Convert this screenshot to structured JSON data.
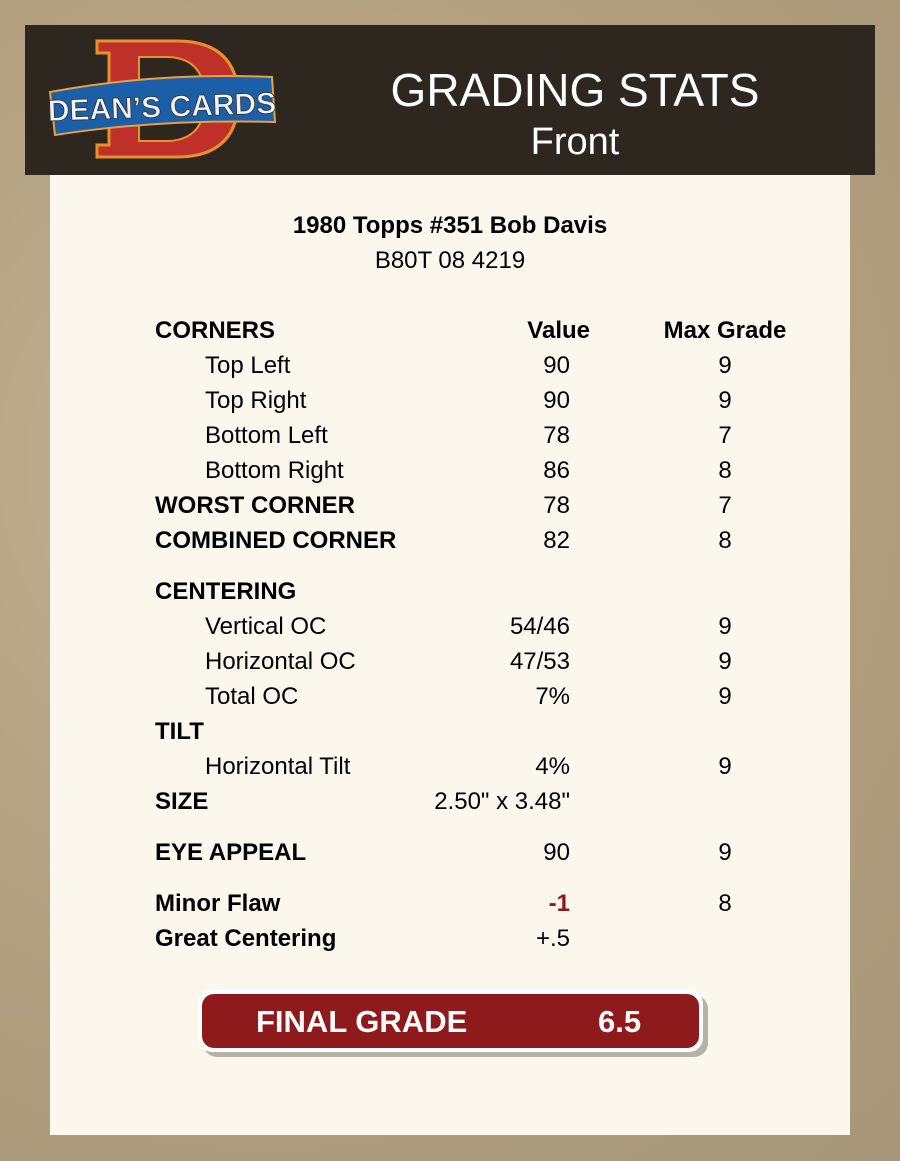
{
  "header": {
    "logo_text": "DEAN'S CARDS",
    "title": "GRADING STATS",
    "subtitle": "Front"
  },
  "card": {
    "name": "1980 Topps #351 Bob Davis",
    "id": "B80T 08 4219"
  },
  "columns": {
    "value": "Value",
    "max": "Max Grade"
  },
  "rows": [
    {
      "label": "CORNERS",
      "value": "",
      "max": ""
    },
    {
      "label": "Top Left",
      "value": "90",
      "max": "9"
    },
    {
      "label": "Top Right",
      "value": "90",
      "max": "9"
    },
    {
      "label": "Bottom Left",
      "value": "78",
      "max": "7"
    },
    {
      "label": "Bottom Right",
      "value": "86",
      "max": "8"
    },
    {
      "label": "WORST CORNER",
      "value": "78",
      "max": "7"
    },
    {
      "label": "COMBINED CORNER",
      "value": "82",
      "max": "8"
    },
    {
      "label": "CENTERING",
      "value": "",
      "max": ""
    },
    {
      "label": "Vertical OC",
      "value": "54/46",
      "max": "9"
    },
    {
      "label": "Horizontal OC",
      "value": "47/53",
      "max": "9"
    },
    {
      "label": "Total OC",
      "value": "7%",
      "max": "9"
    },
    {
      "label": "TILT",
      "value": "",
      "max": ""
    },
    {
      "label": "Horizontal Tilt",
      "value": "4%",
      "max": "9"
    },
    {
      "label": "SIZE",
      "value": "2.50\" x 3.48\"",
      "max": ""
    },
    {
      "label": "EYE APPEAL",
      "value": "90",
      "max": "9"
    },
    {
      "label": "Minor Flaw",
      "value": "-1",
      "max": "8"
    },
    {
      "label": "Great Centering",
      "value": "+.5",
      "max": ""
    }
  ],
  "final": {
    "label": "FINAL GRADE",
    "value": "6.5"
  },
  "colors": {
    "header_bg": "#2e2720",
    "panel_bg": "#fcf7ed",
    "accent_red": "#8f1a1c"
  }
}
